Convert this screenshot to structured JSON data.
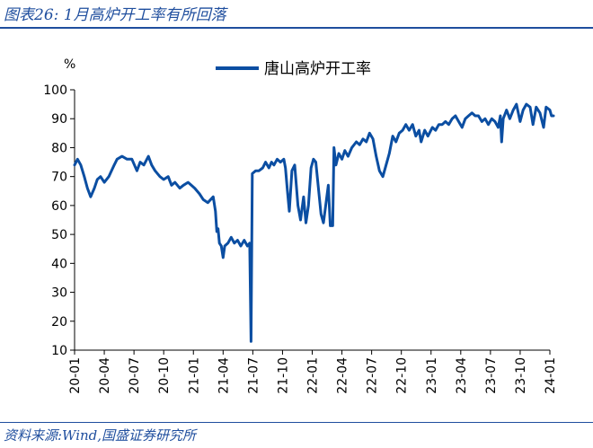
{
  "figure": {
    "title": "图表26:  1月高炉开工率有所回落",
    "source": "资料来源:Wind,国盛证券研究所"
  },
  "colors": {
    "accent": "#1f4e9e",
    "series": "#0b4ea2"
  },
  "chart_data": {
    "type": "line",
    "ylabel": "%",
    "ylim": [
      10,
      100
    ],
    "yticks": [
      10,
      20,
      30,
      40,
      50,
      60,
      70,
      80,
      90,
      100
    ],
    "xlim": [
      "2020-01",
      "2024-01"
    ],
    "xticks": [
      "20-01",
      "20-04",
      "20-07",
      "20-10",
      "21-01",
      "21-04",
      "21-07",
      "21-10",
      "22-01",
      "22-04",
      "22-07",
      "22-10",
      "23-01",
      "23-04",
      "23-07",
      "23-10",
      "24-01"
    ],
    "legend_position": "top-center",
    "grid": false,
    "series": [
      {
        "name": "唐山高炉开工率",
        "points": [
          [
            "2020-01-01",
            74
          ],
          [
            "2020-01-10",
            76
          ],
          [
            "2020-01-20",
            74
          ],
          [
            "2020-01-31",
            70
          ],
          [
            "2020-02-10",
            66
          ],
          [
            "2020-02-20",
            63
          ],
          [
            "2020-03-01",
            66
          ],
          [
            "2020-03-10",
            69
          ],
          [
            "2020-03-20",
            70
          ],
          [
            "2020-04-01",
            68
          ],
          [
            "2020-04-15",
            70
          ],
          [
            "2020-05-01",
            74
          ],
          [
            "2020-05-10",
            76
          ],
          [
            "2020-05-25",
            77
          ],
          [
            "2020-06-10",
            76
          ],
          [
            "2020-06-25",
            76
          ],
          [
            "2020-07-10",
            72
          ],
          [
            "2020-07-20",
            75
          ],
          [
            "2020-08-01",
            74
          ],
          [
            "2020-08-15",
            77
          ],
          [
            "2020-08-25",
            74
          ],
          [
            "2020-09-05",
            72
          ],
          [
            "2020-09-20",
            70
          ],
          [
            "2020-10-01",
            69
          ],
          [
            "2020-10-15",
            70
          ],
          [
            "2020-10-25",
            67
          ],
          [
            "2020-11-05",
            68
          ],
          [
            "2020-11-20",
            66
          ],
          [
            "2020-12-01",
            67
          ],
          [
            "2020-12-15",
            68
          ],
          [
            "2020-12-25",
            67
          ],
          [
            "2021-01-05",
            66
          ],
          [
            "2021-01-20",
            64
          ],
          [
            "2021-02-01",
            62
          ],
          [
            "2021-02-15",
            61
          ],
          [
            "2021-03-01",
            63
          ],
          [
            "2021-03-08",
            58
          ],
          [
            "2021-03-12",
            51
          ],
          [
            "2021-03-16",
            52
          ],
          [
            "2021-03-20",
            47
          ],
          [
            "2021-03-26",
            46
          ],
          [
            "2021-04-01",
            42
          ],
          [
            "2021-04-06",
            46
          ],
          [
            "2021-04-16",
            47
          ],
          [
            "2021-04-26",
            49
          ],
          [
            "2021-05-05",
            47
          ],
          [
            "2021-05-15",
            48
          ],
          [
            "2021-05-25",
            46
          ],
          [
            "2021-06-05",
            48
          ],
          [
            "2021-06-15",
            46
          ],
          [
            "2021-06-22",
            47
          ],
          [
            "2021-06-26",
            13
          ],
          [
            "2021-06-30",
            71
          ],
          [
            "2021-07-10",
            72
          ],
          [
            "2021-07-20",
            72
          ],
          [
            "2021-08-01",
            73
          ],
          [
            "2021-08-10",
            75
          ],
          [
            "2021-08-20",
            73
          ],
          [
            "2021-08-28",
            75
          ],
          [
            "2021-09-05",
            74
          ],
          [
            "2021-09-15",
            76
          ],
          [
            "2021-09-25",
            75
          ],
          [
            "2021-10-05",
            76
          ],
          [
            "2021-10-10",
            73
          ],
          [
            "2021-10-16",
            65
          ],
          [
            "2021-10-22",
            58
          ],
          [
            "2021-10-30",
            72
          ],
          [
            "2021-11-08",
            74
          ],
          [
            "2021-11-18",
            60
          ],
          [
            "2021-11-26",
            55
          ],
          [
            "2021-12-05",
            63
          ],
          [
            "2021-12-12",
            54
          ],
          [
            "2021-12-20",
            60
          ],
          [
            "2021-12-28",
            73
          ],
          [
            "2022-01-05",
            76
          ],
          [
            "2022-01-12",
            75
          ],
          [
            "2022-01-20",
            66
          ],
          [
            "2022-01-28",
            57
          ],
          [
            "2022-02-05",
            54
          ],
          [
            "2022-02-12",
            60
          ],
          [
            "2022-02-20",
            67
          ],
          [
            "2022-02-26",
            53
          ],
          [
            "2022-03-03",
            53
          ],
          [
            "2022-03-07",
            80
          ],
          [
            "2022-03-13",
            74
          ],
          [
            "2022-03-22",
            78
          ],
          [
            "2022-04-01",
            76
          ],
          [
            "2022-04-10",
            79
          ],
          [
            "2022-04-20",
            77
          ],
          [
            "2022-05-01",
            80
          ],
          [
            "2022-05-15",
            82
          ],
          [
            "2022-05-25",
            81
          ],
          [
            "2022-06-05",
            83
          ],
          [
            "2022-06-15",
            82
          ],
          [
            "2022-06-25",
            85
          ],
          [
            "2022-07-05",
            83
          ],
          [
            "2022-07-15",
            77
          ],
          [
            "2022-07-25",
            72
          ],
          [
            "2022-08-05",
            70
          ],
          [
            "2022-08-15",
            74
          ],
          [
            "2022-08-25",
            78
          ],
          [
            "2022-09-05",
            84
          ],
          [
            "2022-09-15",
            82
          ],
          [
            "2022-09-25",
            85
          ],
          [
            "2022-10-05",
            86
          ],
          [
            "2022-10-15",
            88
          ],
          [
            "2022-10-25",
            86
          ],
          [
            "2022-11-05",
            88
          ],
          [
            "2022-11-15",
            84
          ],
          [
            "2022-11-25",
            86
          ],
          [
            "2022-12-01",
            82
          ],
          [
            "2022-12-12",
            86
          ],
          [
            "2022-12-22",
            84
          ],
          [
            "2023-01-05",
            87
          ],
          [
            "2023-01-15",
            86
          ],
          [
            "2023-01-25",
            88
          ],
          [
            "2023-02-05",
            88
          ],
          [
            "2023-02-15",
            89
          ],
          [
            "2023-02-25",
            88
          ],
          [
            "2023-03-05",
            90
          ],
          [
            "2023-03-15",
            91
          ],
          [
            "2023-03-25",
            89
          ],
          [
            "2023-04-05",
            87
          ],
          [
            "2023-04-15",
            90
          ],
          [
            "2023-04-25",
            91
          ],
          [
            "2023-05-05",
            92
          ],
          [
            "2023-05-15",
            91
          ],
          [
            "2023-05-25",
            91
          ],
          [
            "2023-06-05",
            89
          ],
          [
            "2023-06-15",
            90
          ],
          [
            "2023-06-25",
            88
          ],
          [
            "2023-07-05",
            90
          ],
          [
            "2023-07-15",
            89
          ],
          [
            "2023-07-25",
            87
          ],
          [
            "2023-08-01",
            91
          ],
          [
            "2023-08-05",
            82
          ],
          [
            "2023-08-10",
            90
          ],
          [
            "2023-08-20",
            93
          ],
          [
            "2023-08-30",
            90
          ],
          [
            "2023-09-10",
            93
          ],
          [
            "2023-09-20",
            95
          ],
          [
            "2023-10-01",
            89
          ],
          [
            "2023-10-10",
            93
          ],
          [
            "2023-10-20",
            95
          ],
          [
            "2023-11-01",
            94
          ],
          [
            "2023-11-10",
            88
          ],
          [
            "2023-11-20",
            94
          ],
          [
            "2023-12-01",
            92
          ],
          [
            "2023-12-12",
            87
          ],
          [
            "2023-12-20",
            94
          ],
          [
            "2024-01-01",
            93
          ],
          [
            "2024-01-06",
            91
          ],
          [
            "2024-01-12",
            91
          ]
        ]
      }
    ]
  }
}
